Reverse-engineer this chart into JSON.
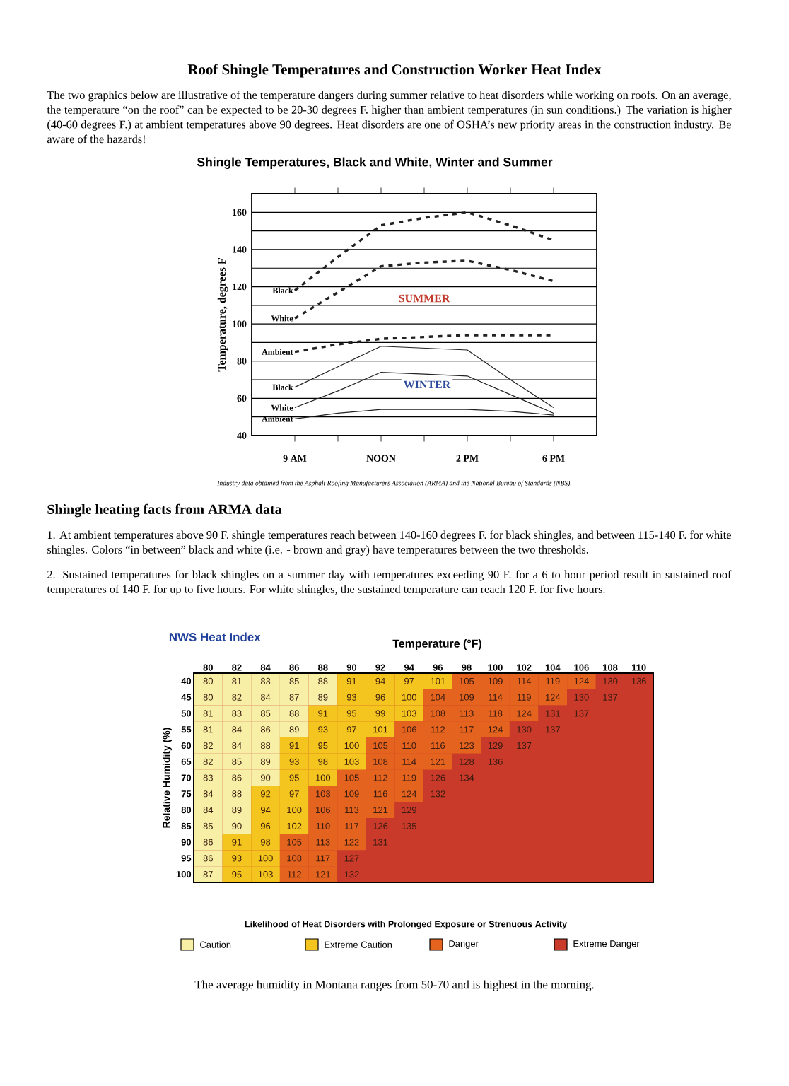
{
  "chart_data": [
    {
      "type": "line",
      "title": "Shingle Temperatures, Black and White, Winter and Summer",
      "ylabel": "Temperature, degrees F",
      "categories": [
        "9 AM",
        null,
        "NOON",
        null,
        "2 PM",
        null,
        "6 PM"
      ],
      "ylim": [
        40,
        170
      ],
      "yticks": [
        40,
        {
          "value": 50,
          "label": null
        },
        60,
        {
          "value": 70,
          "label": null
        },
        80,
        {
          "value": 90,
          "label": null
        },
        100,
        {
          "value": 110,
          "label": null
        },
        120,
        {
          "value": 130,
          "label": null
        },
        140,
        {
          "value": 150,
          "label": null
        },
        160
      ],
      "grid": "y",
      "series": [
        {
          "name": "Black",
          "color": "#222222",
          "line_style": "dashed",
          "values": [
            118,
            136,
            153,
            157,
            160,
            153,
            145
          ]
        },
        {
          "name": "White",
          "color": "#222222",
          "line_style": "dashed",
          "values": [
            103,
            117,
            131,
            133,
            134,
            129,
            123
          ]
        },
        {
          "name": "Ambient",
          "color": "#222222",
          "line_style": "dashed",
          "values": [
            85,
            89,
            92,
            93,
            94,
            94,
            94
          ]
        },
        {
          "name": "Black",
          "color": "#222222",
          "line_style": "solid",
          "values": [
            66,
            77,
            88,
            87,
            86,
            70,
            55
          ]
        },
        {
          "name": "White",
          "color": "#222222",
          "line_style": "solid",
          "values": [
            55,
            64,
            74,
            73,
            72,
            62,
            52
          ]
        },
        {
          "name": "Ambient",
          "color": "#222222",
          "line_style": "solid",
          "values": [
            49,
            52,
            54,
            54,
            54,
            53,
            51
          ]
        }
      ],
      "annotations": [
        "Roof Shingle Temperatures and Construction Worker Heat Index",
        "The two graphics below are illustrative of the temperature dangers during summer relative to heat disorders while working on roofs. On an average, the temperature “on the roof” can be expected to be 20-30 degrees F. higher than ambient temperatures (in sun conditions.) The variation is higher (40-60 degrees F.) at ambient temperatures above 90 degrees. Heat disorders are one of OSHA’s new priority areas in the construction industry. Be aware of the hazards!",
        "Industry data obtained from the Asphalt Roofing Manufacturers Association (ARMA) and the National Bureau of Standards (NBS).",
        "Shingle heating facts from ARMA data",
        "1. At ambient temperatures above 90 F. shingle temperatures reach between 140-160 degrees F. for black shingles, and between 115-140 F. for white shingles. Colors “in between” black and white (i.e. - brown and gray) have temperatures between the two thresholds.",
        "2. Sustained temperatures for black shingles on a summer day with temperatures exceeding 90 F. for a 6 to hour period result in sustained roof temperatures of 140 F. for up to five hours. For white shingles, the sustained temperature can reach 120 F. for five hours.",
        "SUMMER",
        "WINTER"
      ]
    },
    {
      "type": "heatmap",
      "title": "NWS Heat Index",
      "xlabel": "Temperature (°F)",
      "ylabel": "Relative Humidity (%)",
      "categories": [
        "80",
        "82",
        "84",
        "86",
        "88",
        "90",
        "92",
        "94",
        "96",
        "98",
        "100",
        "102",
        "104",
        "106",
        "108",
        "110"
      ],
      "y_categories": [
        "40",
        "45",
        "50",
        "55",
        "60",
        "65",
        "70",
        "75",
        "80",
        "85",
        "90",
        "95",
        "100"
      ],
      "cells": [
        [
          80,
          81,
          83,
          85,
          88,
          91,
          94,
          97,
          101,
          105,
          109,
          114,
          119,
          124,
          130,
          136
        ],
        [
          80,
          82,
          84,
          87,
          89,
          93,
          96,
          100,
          104,
          109,
          114,
          119,
          124,
          130,
          137,
          null
        ],
        [
          81,
          83,
          85,
          88,
          91,
          95,
          99,
          103,
          108,
          113,
          118,
          124,
          131,
          137,
          null,
          null
        ],
        [
          81,
          84,
          86,
          89,
          93,
          97,
          101,
          106,
          112,
          117,
          124,
          130,
          137,
          null,
          null,
          null
        ],
        [
          82,
          84,
          88,
          91,
          95,
          100,
          105,
          110,
          116,
          123,
          129,
          137,
          null,
          null,
          null,
          null
        ],
        [
          82,
          85,
          89,
          93,
          98,
          103,
          108,
          114,
          121,
          128,
          136,
          null,
          null,
          null,
          null,
          null
        ],
        [
          83,
          86,
          90,
          95,
          100,
          105,
          112,
          119,
          126,
          134,
          null,
          null,
          null,
          null,
          null,
          null
        ],
        [
          84,
          88,
          92,
          97,
          103,
          109,
          116,
          124,
          132,
          null,
          null,
          null,
          null,
          null,
          null,
          null
        ],
        [
          84,
          89,
          94,
          100,
          106,
          113,
          121,
          129,
          null,
          null,
          null,
          null,
          null,
          null,
          null,
          null
        ],
        [
          85,
          90,
          96,
          102,
          110,
          117,
          126,
          135,
          null,
          null,
          null,
          null,
          null,
          null,
          null,
          null
        ],
        [
          86,
          91,
          98,
          105,
          113,
          122,
          131,
          null,
          null,
          null,
          null,
          null,
          null,
          null,
          null,
          null
        ],
        [
          86,
          93,
          100,
          108,
          117,
          127,
          null,
          null,
          null,
          null,
          null,
          null,
          null,
          null,
          null,
          null
        ],
        [
          87,
          95,
          103,
          112,
          121,
          132,
          null,
          null,
          null,
          null,
          null,
          null,
          null,
          null,
          null,
          null
        ]
      ],
      "colors": [
        [
          "#f7efa6",
          "#f7efa6",
          "#f7efa6",
          "#f7efa6",
          "#f7efa6",
          "#f4c51e",
          "#f4c51e",
          "#f4c51e",
          "#f4c51e",
          "#e4631f",
          "#e4631f",
          "#e4631f",
          "#e4631f",
          "#e4631f",
          "#c93a2a",
          "#c93a2a"
        ],
        [
          "#f7efa6",
          "#f7efa6",
          "#f7efa6",
          "#f7efa6",
          "#f7efa6",
          "#f4c51e",
          "#f4c51e",
          "#f4c51e",
          "#e4631f",
          "#e4631f",
          "#e4631f",
          "#e4631f",
          "#e4631f",
          "#c93a2a",
          "#c93a2a",
          "#c93a2a"
        ],
        [
          "#f7efa6",
          "#f7efa6",
          "#f7efa6",
          "#f7efa6",
          "#f4c51e",
          "#f4c51e",
          "#f4c51e",
          "#f4c51e",
          "#e4631f",
          "#e4631f",
          "#e4631f",
          "#e4631f",
          "#c93a2a",
          "#c93a2a",
          "#c93a2a",
          "#c93a2a"
        ],
        [
          "#f7efa6",
          "#f7efa6",
          "#f7efa6",
          "#f7efa6",
          "#f4c51e",
          "#f4c51e",
          "#f4c51e",
          "#e4631f",
          "#e4631f",
          "#e4631f",
          "#e4631f",
          "#c93a2a",
          "#c93a2a",
          "#c93a2a",
          "#c93a2a",
          "#c93a2a"
        ],
        [
          "#f7efa6",
          "#f7efa6",
          "#f7efa6",
          "#f4c51e",
          "#f4c51e",
          "#f4c51e",
          "#e4631f",
          "#e4631f",
          "#e4631f",
          "#e4631f",
          "#c93a2a",
          "#c93a2a",
          "#c93a2a",
          "#c93a2a",
          "#c93a2a",
          "#c93a2a"
        ],
        [
          "#f7efa6",
          "#f7efa6",
          "#f7efa6",
          "#f4c51e",
          "#f4c51e",
          "#f4c51e",
          "#e4631f",
          "#e4631f",
          "#e4631f",
          "#c93a2a",
          "#c93a2a",
          "#c93a2a",
          "#c93a2a",
          "#c93a2a",
          "#c93a2a",
          "#c93a2a"
        ],
        [
          "#f7efa6",
          "#f7efa6",
          "#f7efa6",
          "#f4c51e",
          "#f4c51e",
          "#e4631f",
          "#e4631f",
          "#e4631f",
          "#c93a2a",
          "#c93a2a",
          "#c93a2a",
          "#c93a2a",
          "#c93a2a",
          "#c93a2a",
          "#c93a2a",
          "#c93a2a"
        ],
        [
          "#f7efa6",
          "#f7efa6",
          "#f4c51e",
          "#f4c51e",
          "#e4631f",
          "#e4631f",
          "#e4631f",
          "#e4631f",
          "#c93a2a",
          "#c93a2a",
          "#c93a2a",
          "#c93a2a",
          "#c93a2a",
          "#c93a2a",
          "#c93a2a",
          "#c93a2a"
        ],
        [
          "#f7efa6",
          "#f7efa6",
          "#f4c51e",
          "#f4c51e",
          "#e4631f",
          "#e4631f",
          "#e4631f",
          "#c93a2a",
          "#c93a2a",
          "#c93a2a",
          "#c93a2a",
          "#c93a2a",
          "#c93a2a",
          "#c93a2a",
          "#c93a2a",
          "#c93a2a"
        ],
        [
          "#f7efa6",
          "#f7efa6",
          "#f4c51e",
          "#f4c51e",
          "#e4631f",
          "#e4631f",
          "#c93a2a",
          "#c93a2a",
          "#c93a2a",
          "#c93a2a",
          "#c93a2a",
          "#c93a2a",
          "#c93a2a",
          "#c93a2a",
          "#c93a2a",
          "#c93a2a"
        ],
        [
          "#f7efa6",
          "#f4c51e",
          "#f4c51e",
          "#e4631f",
          "#e4631f",
          "#e4631f",
          "#c93a2a",
          "#c93a2a",
          "#c93a2a",
          "#c93a2a",
          "#c93a2a",
          "#c93a2a",
          "#c93a2a",
          "#c93a2a",
          "#c93a2a",
          "#c93a2a"
        ],
        [
          "#f7efa6",
          "#f4c51e",
          "#f4c51e",
          "#e4631f",
          "#e4631f",
          "#c93a2a",
          "#c93a2a",
          "#c93a2a",
          "#c93a2a",
          "#c93a2a",
          "#c93a2a",
          "#c93a2a",
          "#c93a2a",
          "#c93a2a",
          "#c93a2a",
          "#c93a2a"
        ],
        [
          "#f7efa6",
          "#f4c51e",
          "#f4c51e",
          "#e4631f",
          "#e4631f",
          "#c93a2a",
          "#c93a2a",
          "#c93a2a",
          "#c93a2a",
          "#c93a2a",
          "#c93a2a",
          "#c93a2a",
          "#c93a2a",
          "#c93a2a",
          "#c93a2a",
          "#c93a2a"
        ]
      ],
      "data_labels": true,
      "legend": "bottom",
      "series": [
        {
          "name": "Caution",
          "color": "#f7efa6",
          "values": [
            null,
            null,
            null,
            null,
            null,
            null,
            null,
            null,
            null,
            null,
            null,
            null,
            null,
            null,
            null,
            null
          ]
        },
        {
          "name": "Extreme Caution",
          "color": "#f4c51e",
          "values": [
            null,
            null,
            null,
            null,
            null,
            null,
            null,
            null,
            null,
            null,
            null,
            null,
            null,
            null,
            null,
            null
          ]
        },
        {
          "name": "Danger",
          "color": "#e4631f",
          "values": [
            null,
            null,
            null,
            null,
            null,
            null,
            null,
            null,
            null,
            null,
            null,
            null,
            null,
            null,
            null,
            null
          ]
        },
        {
          "name": "Extreme Danger",
          "color": "#c93a2a",
          "values": [
            null,
            null,
            null,
            null,
            null,
            null,
            null,
            null,
            null,
            null,
            null,
            null,
            null,
            null,
            null,
            null
          ]
        }
      ],
      "annotations": [
        "Likelihood of Heat Disorders with Prolonged Exposure or Strenuous Activity",
        "The average humidity in Montana ranges from 50-70 and is highest in the morning."
      ]
    }
  ]
}
